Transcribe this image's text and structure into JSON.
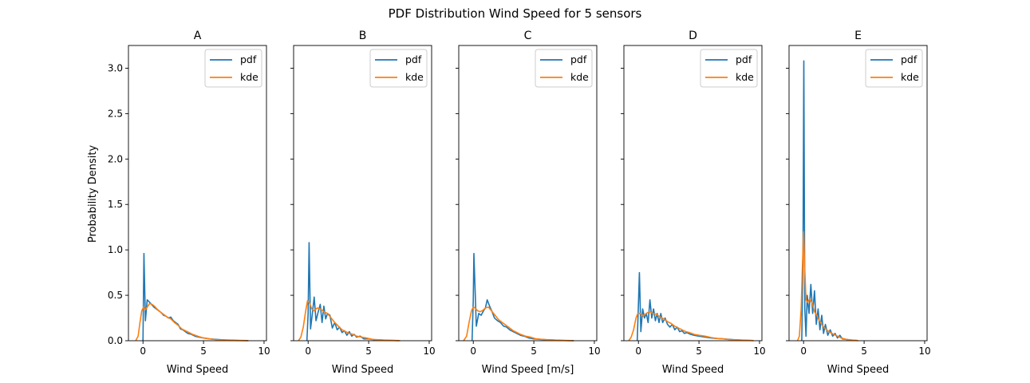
{
  "figure": {
    "title": "PDF Distribution Wind Speed for 5 sensors",
    "ylabel": "Probability Density"
  },
  "colors": {
    "pdf": "#1f77b4",
    "kde": "#ff7f0e"
  },
  "chart_data": [
    {
      "type": "line",
      "title": "A",
      "xlabel": "Wind Speed",
      "ylabel": "Probability Density",
      "xlim": [
        -1.2,
        10.2
      ],
      "ylim": [
        0,
        3.25
      ],
      "xticks": [
        0,
        5,
        10
      ],
      "yticks": [
        "0.0",
        "0.5",
        "1.0",
        "1.5",
        "2.0",
        "2.5",
        "3.0"
      ],
      "legend": "top-right",
      "series": [
        {
          "name": "pdf",
          "x": [
            0,
            0.08,
            0.2,
            0.35,
            0.5,
            0.7,
            0.9,
            1.1,
            1.3,
            1.5,
            1.7,
            1.9,
            2.1,
            2.3,
            2.5,
            2.7,
            2.9,
            3.1,
            3.3,
            3.5,
            3.7,
            4.0,
            4.3,
            4.6,
            5.0,
            5.5,
            6.0,
            6.5,
            7.0,
            7.5,
            8.0,
            8.7
          ],
          "y": [
            0.0,
            0.96,
            0.22,
            0.45,
            0.43,
            0.4,
            0.37,
            0.35,
            0.33,
            0.31,
            0.28,
            0.27,
            0.25,
            0.26,
            0.22,
            0.2,
            0.18,
            0.13,
            0.12,
            0.1,
            0.08,
            0.07,
            0.05,
            0.04,
            0.03,
            0.02,
            0.015,
            0.01,
            0.007,
            0.005,
            0.003,
            0.002
          ]
        },
        {
          "name": "kde",
          "x": [
            -0.6,
            -0.4,
            -0.25,
            -0.1,
            0.05,
            0.2,
            0.35,
            0.55,
            0.75,
            0.95,
            1.15,
            1.4,
            1.7,
            2.0,
            2.3,
            2.6,
            2.9,
            3.2,
            3.5,
            3.8,
            4.1,
            4.5,
            5.0,
            5.5,
            6.0,
            6.5,
            7.0,
            7.5,
            8.0,
            8.7
          ],
          "y": [
            0.0,
            0.05,
            0.2,
            0.33,
            0.37,
            0.34,
            0.37,
            0.41,
            0.4,
            0.38,
            0.35,
            0.32,
            0.29,
            0.26,
            0.24,
            0.2,
            0.17,
            0.13,
            0.11,
            0.09,
            0.07,
            0.05,
            0.03,
            0.02,
            0.012,
            0.008,
            0.005,
            0.003,
            0.002,
            0.001
          ]
        }
      ]
    },
    {
      "type": "line",
      "title": "B",
      "xlabel": "Wind Speed",
      "xlim": [
        -1.2,
        10.2
      ],
      "ylim": [
        0,
        3.25
      ],
      "xticks": [
        0,
        5,
        10
      ],
      "legend": "top-right",
      "series": [
        {
          "name": "pdf",
          "x": [
            -0.1,
            0.0,
            0.08,
            0.2,
            0.35,
            0.5,
            0.65,
            0.8,
            1.0,
            1.15,
            1.3,
            1.45,
            1.6,
            1.8,
            2.0,
            2.2,
            2.4,
            2.6,
            2.8,
            3.0,
            3.2,
            3.4,
            3.6,
            3.8,
            4.0,
            4.3,
            4.6,
            5.0,
            5.5,
            6.0,
            6.5,
            7.0,
            7.5
          ],
          "y": [
            0.0,
            0.3,
            1.08,
            0.13,
            0.3,
            0.48,
            0.22,
            0.3,
            0.4,
            0.2,
            0.38,
            0.24,
            0.3,
            0.28,
            0.14,
            0.2,
            0.12,
            0.15,
            0.09,
            0.11,
            0.06,
            0.1,
            0.05,
            0.07,
            0.04,
            0.05,
            0.02,
            0.02,
            0.01,
            0.008,
            0.005,
            0.003,
            0.002
          ]
        },
        {
          "name": "kde",
          "x": [
            -0.8,
            -0.6,
            -0.4,
            -0.2,
            -0.05,
            0.1,
            0.3,
            0.5,
            0.75,
            1.0,
            1.3,
            1.6,
            1.9,
            2.2,
            2.5,
            2.8,
            3.1,
            3.4,
            3.7,
            4.0,
            4.4,
            4.8,
            5.3,
            5.8,
            6.3,
            6.8,
            7.3,
            7.6
          ],
          "y": [
            0.0,
            0.04,
            0.15,
            0.33,
            0.44,
            0.42,
            0.35,
            0.33,
            0.36,
            0.35,
            0.32,
            0.3,
            0.25,
            0.2,
            0.16,
            0.12,
            0.1,
            0.08,
            0.07,
            0.05,
            0.04,
            0.03,
            0.015,
            0.01,
            0.006,
            0.004,
            0.002,
            0.001
          ]
        }
      ]
    },
    {
      "type": "line",
      "title": "C",
      "xlabel": "Wind Speed [m/s]",
      "xlim": [
        -1.2,
        10.2
      ],
      "ylim": [
        0,
        3.25
      ],
      "xticks": [
        0,
        5,
        10
      ],
      "legend": "top-right",
      "series": [
        {
          "name": "pdf",
          "x": [
            -0.1,
            0.0,
            0.05,
            0.25,
            0.45,
            0.65,
            0.85,
            1.0,
            1.15,
            1.35,
            1.55,
            1.75,
            2.0,
            2.25,
            2.5,
            2.75,
            3.0,
            3.3,
            3.6,
            3.9,
            4.2,
            4.6,
            5.0,
            5.5,
            6.0,
            6.5,
            7.0,
            7.5,
            8.0,
            8.3
          ],
          "y": [
            0.0,
            0.45,
            0.96,
            0.16,
            0.3,
            0.28,
            0.33,
            0.36,
            0.45,
            0.38,
            0.32,
            0.25,
            0.22,
            0.2,
            0.16,
            0.15,
            0.12,
            0.1,
            0.08,
            0.06,
            0.05,
            0.03,
            0.02,
            0.015,
            0.01,
            0.008,
            0.005,
            0.003,
            0.002,
            0.001
          ]
        },
        {
          "name": "kde",
          "x": [
            -0.8,
            -0.55,
            -0.35,
            -0.15,
            0.0,
            0.15,
            0.35,
            0.55,
            0.75,
            1.0,
            1.25,
            1.5,
            1.8,
            2.1,
            2.4,
            2.7,
            3.0,
            3.3,
            3.6,
            3.9,
            4.3,
            4.7,
            5.2,
            5.7,
            6.2,
            6.7,
            7.2,
            7.7,
            8.3
          ],
          "y": [
            0.0,
            0.05,
            0.2,
            0.33,
            0.37,
            0.36,
            0.33,
            0.32,
            0.33,
            0.36,
            0.37,
            0.33,
            0.28,
            0.23,
            0.2,
            0.17,
            0.14,
            0.11,
            0.09,
            0.07,
            0.05,
            0.04,
            0.02,
            0.015,
            0.01,
            0.007,
            0.004,
            0.002,
            0.001
          ]
        }
      ]
    },
    {
      "type": "line",
      "title": "D",
      "xlabel": "Wind Speed",
      "xlim": [
        -1.2,
        10.2
      ],
      "ylim": [
        0,
        3.25
      ],
      "xticks": [
        0,
        5,
        10
      ],
      "legend": "top-right",
      "series": [
        {
          "name": "pdf",
          "x": [
            -0.1,
            0.0,
            0.08,
            0.2,
            0.35,
            0.5,
            0.65,
            0.8,
            0.95,
            1.1,
            1.25,
            1.4,
            1.55,
            1.7,
            1.85,
            2.0,
            2.2,
            2.4,
            2.6,
            2.8,
            3.0,
            3.2,
            3.4,
            3.6,
            3.8,
            4.0,
            4.3,
            4.6,
            5.0,
            5.5,
            6.0,
            6.5,
            7.0,
            7.5,
            8.0,
            8.5,
            9.0,
            9.5
          ],
          "y": [
            0.0,
            0.4,
            0.75,
            0.1,
            0.35,
            0.25,
            0.3,
            0.2,
            0.45,
            0.25,
            0.35,
            0.22,
            0.3,
            0.2,
            0.3,
            0.2,
            0.25,
            0.18,
            0.15,
            0.18,
            0.12,
            0.15,
            0.1,
            0.11,
            0.08,
            0.09,
            0.07,
            0.06,
            0.05,
            0.04,
            0.03,
            0.025,
            0.02,
            0.015,
            0.01,
            0.007,
            0.004,
            0.002
          ]
        },
        {
          "name": "kde",
          "x": [
            -0.8,
            -0.6,
            -0.4,
            -0.2,
            -0.05,
            0.15,
            0.4,
            0.65,
            0.9,
            1.2,
            1.5,
            1.8,
            2.1,
            2.4,
            2.7,
            3.0,
            3.3,
            3.6,
            3.9,
            4.2,
            4.6,
            5.0,
            5.5,
            6.0,
            6.5,
            7.0,
            7.5,
            8.0,
            8.5,
            9.0,
            9.5
          ],
          "y": [
            0.0,
            0.04,
            0.12,
            0.25,
            0.3,
            0.3,
            0.27,
            0.3,
            0.32,
            0.3,
            0.29,
            0.26,
            0.24,
            0.21,
            0.19,
            0.16,
            0.14,
            0.12,
            0.1,
            0.09,
            0.07,
            0.06,
            0.05,
            0.035,
            0.025,
            0.02,
            0.013,
            0.009,
            0.006,
            0.004,
            0.002
          ]
        }
      ]
    },
    {
      "type": "line",
      "title": "E",
      "xlabel": "Wind Speed",
      "xlim": [
        -1.2,
        10.2
      ],
      "ylim": [
        0,
        3.25
      ],
      "xticks": [
        0,
        5,
        10
      ],
      "legend": "top-right",
      "series": [
        {
          "name": "pdf",
          "x": [
            -0.15,
            -0.05,
            0.02,
            0.1,
            0.2,
            0.3,
            0.45,
            0.6,
            0.75,
            0.9,
            1.05,
            1.2,
            1.35,
            1.5,
            1.65,
            1.8,
            2.0,
            2.2,
            2.4,
            2.6,
            2.8,
            3.0,
            3.2,
            3.5,
            3.8,
            4.1,
            4.5
          ],
          "y": [
            0.0,
            0.9,
            3.08,
            0.35,
            0.05,
            0.5,
            0.3,
            0.62,
            0.3,
            0.55,
            0.18,
            0.35,
            0.12,
            0.28,
            0.08,
            0.18,
            0.06,
            0.12,
            0.05,
            0.08,
            0.03,
            0.06,
            0.02,
            0.015,
            0.01,
            0.005,
            0.002
          ]
        },
        {
          "name": "kde",
          "x": [
            -0.5,
            -0.35,
            -0.2,
            -0.1,
            0.0,
            0.08,
            0.2,
            0.35,
            0.5,
            0.7,
            0.9,
            1.1,
            1.3,
            1.6,
            1.9,
            2.2,
            2.5,
            2.8,
            3.1,
            3.5,
            4.0,
            4.5
          ],
          "y": [
            0.0,
            0.05,
            0.35,
            0.8,
            1.2,
            0.85,
            0.45,
            0.42,
            0.46,
            0.42,
            0.32,
            0.28,
            0.22,
            0.16,
            0.12,
            0.09,
            0.07,
            0.05,
            0.03,
            0.015,
            0.006,
            0.002
          ]
        }
      ]
    }
  ]
}
